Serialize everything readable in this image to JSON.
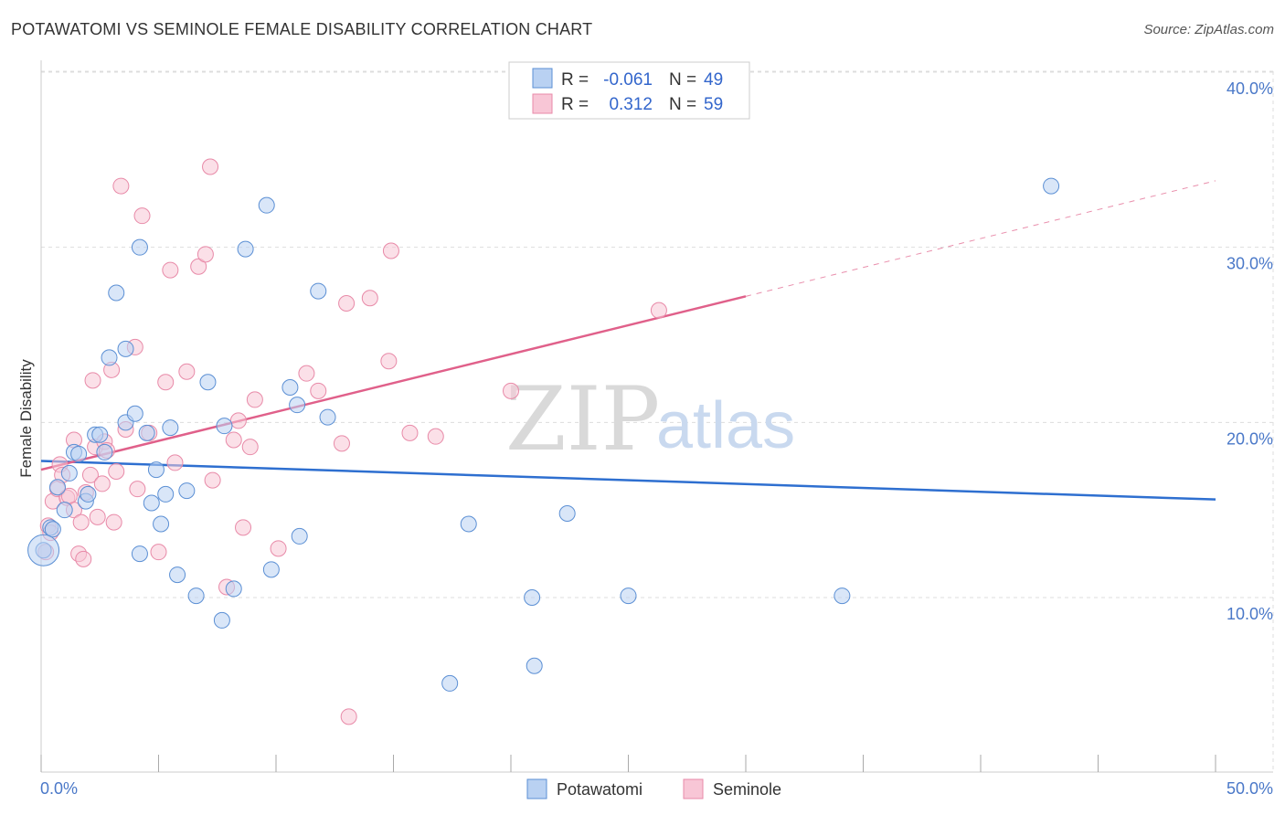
{
  "title": "POTAWATOMI VS SEMINOLE FEMALE DISABILITY CORRELATION CHART",
  "source": "Source: ZipAtlas.com",
  "watermark": {
    "zip": "ZIP",
    "atlas": "atlas"
  },
  "legend": {
    "rows": [
      {
        "r_label": "R =",
        "r_value": "-0.061",
        "n_label": "N =",
        "n_value": "49"
      },
      {
        "r_label": "R =",
        "r_value": "0.312",
        "n_label": "N =",
        "n_value": "59"
      }
    ]
  },
  "colors": {
    "blue_fill": "#b9d1f2",
    "blue_stroke": "#5b8fd4",
    "blue_line": "#2e6fd0",
    "pink_fill": "#f8c6d6",
    "pink_stroke": "#e88aa8",
    "pink_line": "#e0608a",
    "grid": "#dddddd",
    "axis_label": "#4a78c8"
  },
  "chart_data": {
    "type": "scatter",
    "title": "POTAWATOMI VS SEMINOLE FEMALE DISABILITY CORRELATION CHART",
    "xlabel": "",
    "ylabel": "Female Disability",
    "xlim": [
      0,
      50
    ],
    "ylim": [
      0,
      42
    ],
    "x_tick_labels": [
      "0.0%",
      "50.0%"
    ],
    "y_ticks": [
      10,
      20,
      30,
      40
    ],
    "y_tick_labels": [
      "10.0%",
      "20.0%",
      "30.0%",
      "40.0%"
    ],
    "legend_position": "top-center",
    "series": [
      {
        "name": "Potawatomi",
        "r": -0.061,
        "n": 49,
        "trend": {
          "x0": 0,
          "y0": 17.8,
          "x1": 50,
          "y1": 15.6,
          "dashed_from": null
        },
        "points": [
          [
            0.1,
            12.7
          ],
          [
            0.4,
            14.0
          ],
          [
            0.5,
            13.9
          ],
          [
            0.7,
            16.3
          ],
          [
            1.0,
            15.0
          ],
          [
            1.2,
            17.1
          ],
          [
            1.4,
            18.3
          ],
          [
            1.6,
            18.2
          ],
          [
            1.9,
            15.5
          ],
          [
            2.0,
            15.9
          ],
          [
            2.3,
            19.3
          ],
          [
            2.5,
            19.3
          ],
          [
            2.7,
            18.3
          ],
          [
            2.9,
            23.7
          ],
          [
            3.2,
            27.4
          ],
          [
            3.6,
            20.0
          ],
          [
            3.6,
            24.2
          ],
          [
            4.0,
            20.5
          ],
          [
            4.2,
            30.0
          ],
          [
            4.2,
            12.5
          ],
          [
            4.5,
            19.4
          ],
          [
            4.7,
            15.4
          ],
          [
            4.9,
            17.3
          ],
          [
            5.1,
            14.2
          ],
          [
            5.3,
            15.9
          ],
          [
            5.5,
            19.7
          ],
          [
            5.8,
            11.3
          ],
          [
            6.2,
            16.1
          ],
          [
            6.6,
            10.1
          ],
          [
            7.1,
            22.3
          ],
          [
            7.7,
            8.7
          ],
          [
            7.8,
            19.8
          ],
          [
            8.2,
            10.5
          ],
          [
            8.7,
            29.9
          ],
          [
            9.6,
            32.4
          ],
          [
            9.8,
            11.6
          ],
          [
            10.6,
            22.0
          ],
          [
            10.9,
            21.0
          ],
          [
            11.0,
            13.5
          ],
          [
            11.8,
            27.5
          ],
          [
            12.2,
            20.3
          ],
          [
            17.4,
            5.1
          ],
          [
            18.2,
            14.2
          ],
          [
            20.9,
            10.0
          ],
          [
            21.0,
            6.1
          ],
          [
            22.4,
            14.8
          ],
          [
            25.0,
            10.1
          ],
          [
            34.1,
            10.1
          ],
          [
            43.0,
            33.5
          ]
        ]
      },
      {
        "name": "Seminole",
        "r": 0.312,
        "n": 59,
        "trend": {
          "x0": 0,
          "y0": 17.3,
          "x1": 50,
          "y1": 33.8,
          "dashed_from": 30
        },
        "points": [
          [
            0.3,
            14.1
          ],
          [
            0.4,
            13.7
          ],
          [
            0.5,
            15.5
          ],
          [
            0.7,
            16.2
          ],
          [
            0.8,
            17.6
          ],
          [
            0.9,
            17.0
          ],
          [
            1.1,
            15.7
          ],
          [
            1.2,
            15.8
          ],
          [
            1.4,
            15.0
          ],
          [
            1.4,
            19.0
          ],
          [
            1.6,
            12.5
          ],
          [
            1.7,
            14.3
          ],
          [
            1.8,
            12.2
          ],
          [
            1.9,
            16.0
          ],
          [
            2.1,
            17.0
          ],
          [
            2.2,
            22.4
          ],
          [
            2.3,
            18.6
          ],
          [
            2.4,
            14.6
          ],
          [
            2.6,
            16.5
          ],
          [
            2.7,
            18.9
          ],
          [
            2.8,
            18.4
          ],
          [
            3.0,
            23.0
          ],
          [
            3.1,
            14.3
          ],
          [
            3.2,
            17.2
          ],
          [
            3.4,
            33.5
          ],
          [
            3.6,
            19.6
          ],
          [
            4.0,
            24.3
          ],
          [
            4.1,
            16.2
          ],
          [
            4.3,
            31.8
          ],
          [
            4.6,
            19.4
          ],
          [
            5.0,
            12.6
          ],
          [
            5.3,
            22.3
          ],
          [
            5.5,
            28.7
          ],
          [
            5.7,
            17.7
          ],
          [
            6.2,
            22.9
          ],
          [
            6.7,
            28.9
          ],
          [
            7.0,
            29.6
          ],
          [
            7.2,
            34.6
          ],
          [
            7.3,
            16.7
          ],
          [
            7.9,
            10.6
          ],
          [
            8.2,
            19.0
          ],
          [
            8.4,
            20.1
          ],
          [
            8.6,
            14.0
          ],
          [
            8.9,
            18.6
          ],
          [
            9.1,
            21.3
          ],
          [
            10.1,
            12.8
          ],
          [
            11.3,
            22.8
          ],
          [
            11.8,
            21.8
          ],
          [
            12.8,
            18.8
          ],
          [
            13.0,
            26.8
          ],
          [
            13.1,
            3.2
          ],
          [
            14.0,
            27.1
          ],
          [
            14.8,
            23.5
          ],
          [
            14.9,
            29.8
          ],
          [
            15.7,
            19.4
          ],
          [
            16.8,
            19.2
          ],
          [
            20.0,
            21.8
          ],
          [
            26.3,
            26.4
          ],
          [
            0.2,
            12.6
          ]
        ]
      }
    ]
  }
}
